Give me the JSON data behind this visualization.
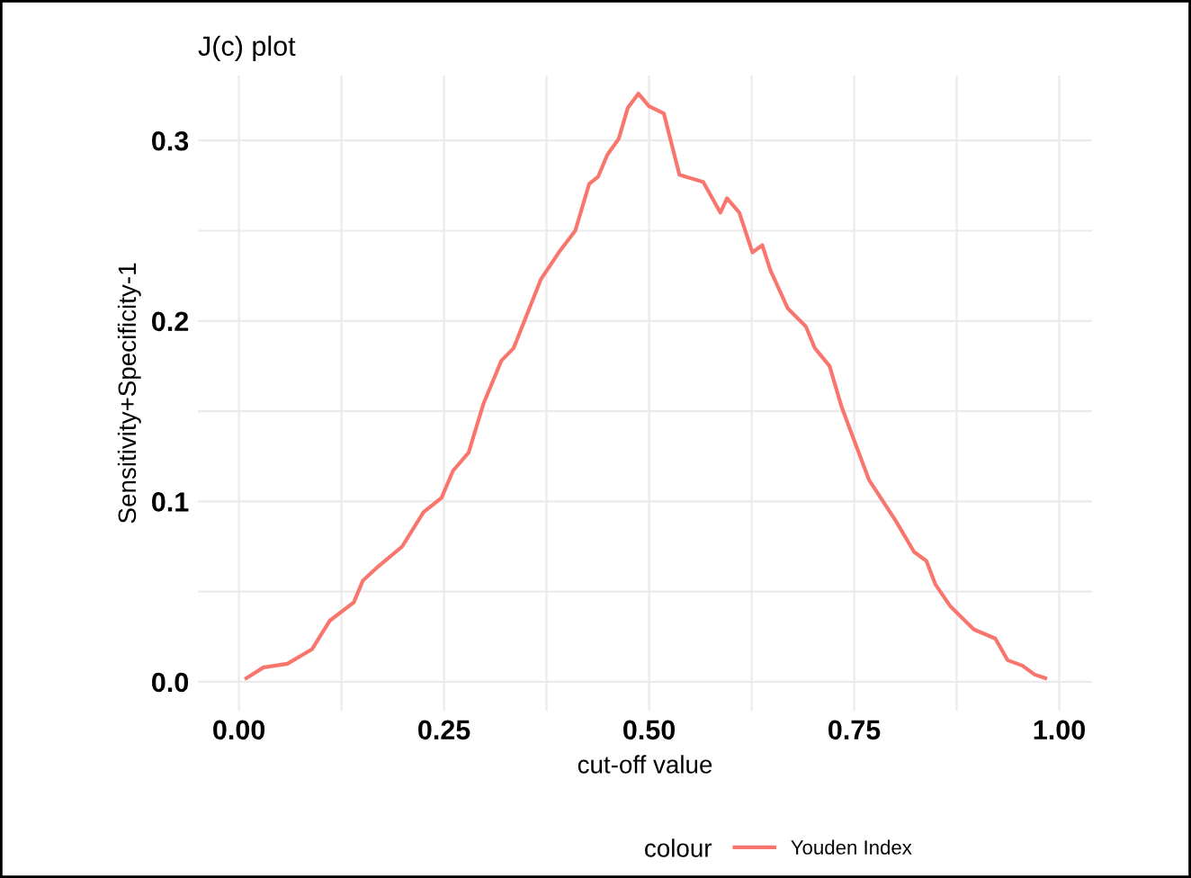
{
  "chart_data": {
    "type": "line",
    "title": "J(c) plot",
    "xlabel": "cut-off value",
    "ylabel": "Sensitivity+Specificity-1",
    "legend_title": "colour",
    "x": [
      0.009,
      0.03,
      0.059,
      0.089,
      0.111,
      0.14,
      0.151,
      0.17,
      0.199,
      0.225,
      0.247,
      0.261,
      0.28,
      0.298,
      0.32,
      0.335,
      0.368,
      0.39,
      0.41,
      0.427,
      0.438,
      0.449,
      0.463,
      0.474,
      0.487,
      0.5,
      0.518,
      0.537,
      0.566,
      0.587,
      0.595,
      0.61,
      0.626,
      0.638,
      0.648,
      0.669,
      0.691,
      0.702,
      0.72,
      0.735,
      0.768,
      0.801,
      0.823,
      0.838,
      0.849,
      0.867,
      0.896,
      0.922,
      0.937,
      0.955,
      0.97,
      0.983
    ],
    "series": [
      {
        "name": "Youden Index",
        "color": "#f8766d",
        "values": [
          0.002,
          0.008,
          0.01,
          0.018,
          0.034,
          0.044,
          0.056,
          0.064,
          0.075,
          0.094,
          0.102,
          0.117,
          0.127,
          0.154,
          0.178,
          0.185,
          0.223,
          0.238,
          0.25,
          0.276,
          0.28,
          0.292,
          0.301,
          0.318,
          0.326,
          0.319,
          0.315,
          0.281,
          0.277,
          0.26,
          0.268,
          0.26,
          0.238,
          0.242,
          0.228,
          0.207,
          0.197,
          0.185,
          0.175,
          0.152,
          0.112,
          0.089,
          0.072,
          0.067,
          0.054,
          0.042,
          0.029,
          0.024,
          0.012,
          0.009,
          0.004,
          0.002
        ]
      }
    ],
    "xlim": [
      -0.05,
      1.04
    ],
    "ylim": [
      -0.016,
      0.336
    ],
    "xticks": [
      {
        "value": 0,
        "label": "0.00"
      },
      {
        "value": 0.125,
        "label": null
      },
      0.25,
      {
        "value": 0.375,
        "label": null
      },
      {
        "value": 0.5,
        "label": "0.50"
      },
      {
        "value": 0.625,
        "label": null
      },
      0.75,
      {
        "value": 0.875,
        "label": null
      },
      {
        "value": 1,
        "label": "1.00"
      }
    ],
    "yticks": [
      {
        "value": 0,
        "label": "0.0"
      },
      {
        "value": 0.05,
        "label": null
      },
      0.1,
      {
        "value": 0.15,
        "label": null
      },
      0.2,
      {
        "value": 0.25,
        "label": null
      },
      0.3
    ],
    "grid": true,
    "legend": "bottom",
    "line_style": "solid",
    "marker": "none"
  }
}
